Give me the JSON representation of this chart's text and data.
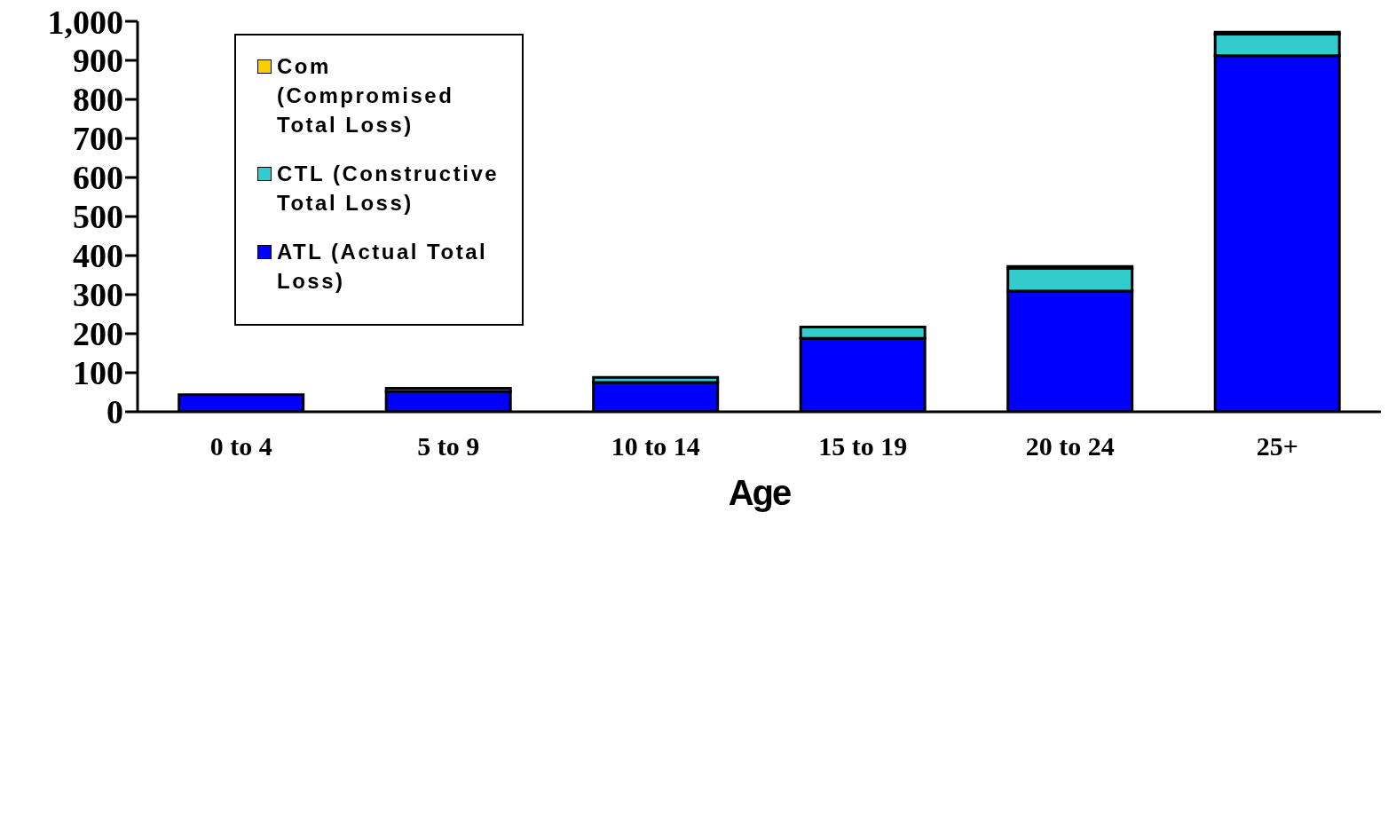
{
  "chart_data": {
    "type": "bar",
    "stacked": true,
    "xlabel": "Age",
    "categories": [
      "0 to 4",
      "5 to 9",
      "10 to 14",
      "15 to 19",
      "20 to 24",
      "25+"
    ],
    "series": [
      {
        "name": "ATL (Actual Total Loss)",
        "color": "#0000ff",
        "values": [
          44,
          52,
          75,
          188,
          309,
          912
        ]
      },
      {
        "name": "CTL (Constructive Total Loss)",
        "color": "#33cccc",
        "values": [
          0,
          8,
          13,
          29,
          58,
          55
        ]
      },
      {
        "name": "Com (Compromised Total Loss)",
        "color": "#ffcc00",
        "values": [
          0,
          0,
          0,
          0,
          5,
          5
        ]
      }
    ],
    "ylim": [
      0,
      1000
    ],
    "yticks": [
      0,
      100,
      200,
      300,
      400,
      500,
      600,
      700,
      800,
      900,
      {
        "value": 1000,
        "label": "1,000"
      }
    ],
    "grid": false,
    "legend": "top left"
  }
}
